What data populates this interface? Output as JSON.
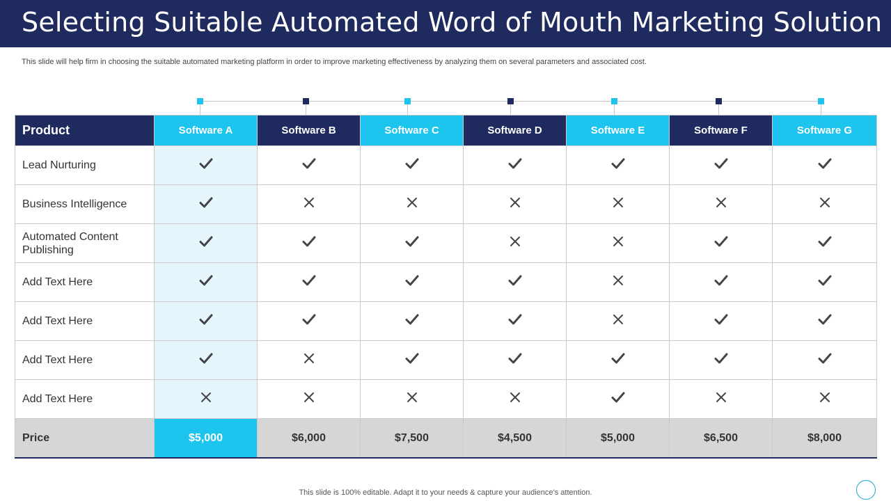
{
  "slide": {
    "title": "Selecting Suitable Automated Word of Mouth Marketing Solution",
    "subtitle": "This slide will help firm in choosing the suitable automated marketing platform in order to improve marketing effectiveness by analyzing them on several parameters and associated cost.",
    "footer": "This slide is 100% editable. Adapt it to your needs & capture your audience’s attention."
  },
  "colors": {
    "navy": "#1f2a5e",
    "cyan": "#1dc4ee",
    "highlight_column": "#e4f5fb",
    "price_row": "#d6d6d6"
  },
  "table": {
    "header_label": "Product",
    "columns": [
      "Software A",
      "Software B",
      "Software C",
      "Software D",
      "Software E",
      "Software F",
      "Software G"
    ],
    "rows": [
      {
        "feature": "Lead Nurturing",
        "values": [
          "check-icon",
          "check-icon",
          "check-icon",
          "check-icon",
          "check-icon",
          "check-icon",
          "check-icon"
        ]
      },
      {
        "feature": "Business Intelligence",
        "values": [
          "check-icon",
          "cross-icon",
          "cross-icon",
          "cross-icon",
          "cross-icon",
          "cross-icon",
          "cross-icon"
        ]
      },
      {
        "feature": "Automated Content Publishing",
        "values": [
          "check-icon",
          "check-icon",
          "check-icon",
          "cross-icon",
          "cross-icon",
          "check-icon",
          "check-icon"
        ]
      },
      {
        "feature": "Add Text Here",
        "values": [
          "check-icon",
          "check-icon",
          "check-icon",
          "check-icon",
          "cross-icon",
          "check-icon",
          "check-icon"
        ]
      },
      {
        "feature": "Add Text Here",
        "values": [
          "check-icon",
          "check-icon",
          "check-icon",
          "check-icon",
          "cross-icon",
          "check-icon",
          "check-icon"
        ]
      },
      {
        "feature": "Add Text Here",
        "values": [
          "check-icon",
          "cross-icon",
          "check-icon",
          "check-icon",
          "check-icon",
          "check-icon",
          "check-icon"
        ]
      },
      {
        "feature": "Add Text Here",
        "values": [
          "cross-icon",
          "cross-icon",
          "cross-icon",
          "cross-icon",
          "check-icon",
          "cross-icon",
          "cross-icon"
        ]
      }
    ],
    "price_label": "Price",
    "prices": [
      "$5,000",
      "$6,000",
      "$7,500",
      "$4,500",
      "$5,000",
      "$6,500",
      "$8,000"
    ]
  }
}
